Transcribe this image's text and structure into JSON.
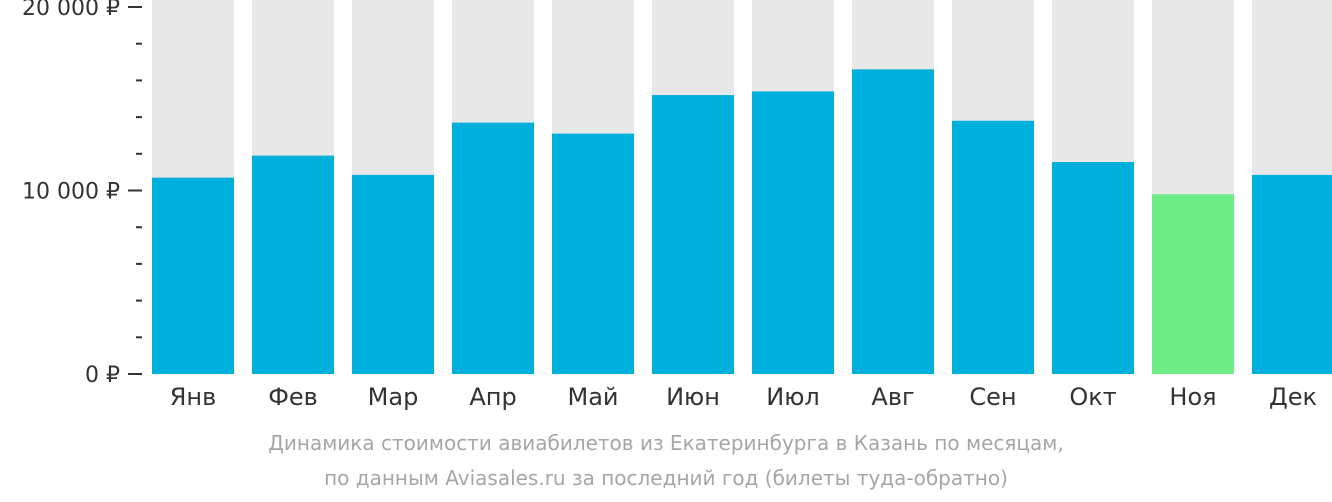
{
  "chart_data": {
    "type": "bar",
    "categories": [
      "Янв",
      "Фев",
      "Мар",
      "Апр",
      "Май",
      "Июн",
      "Июл",
      "Авг",
      "Сен",
      "Окт",
      "Ноя",
      "Дек"
    ],
    "values": [
      10700,
      11900,
      10850,
      13700,
      13100,
      15200,
      15400,
      16600,
      13800,
      11550,
      9800,
      10850
    ],
    "highlight_index": 10,
    "ylim": [
      0,
      20000
    ],
    "yticks": [
      {
        "value": 0,
        "label": "0 ₽"
      },
      {
        "value": 10000,
        "label": "10 000 ₽"
      },
      {
        "value": 20000,
        "label": "20 000 ₽"
      }
    ],
    "minor_tick_step": 2000,
    "grid": false,
    "colors": {
      "bar": "#00b0dc",
      "highlight": "#6ced86",
      "background_bar": "#e8e8e8",
      "axis": "#333333"
    }
  },
  "caption": {
    "line1": "Динамика стоимости авиабилетов из Екатеринбурга в Казань по месяцам,",
    "line2": "по данным Aviasales.ru за последний год (билеты туда-обратно)"
  }
}
